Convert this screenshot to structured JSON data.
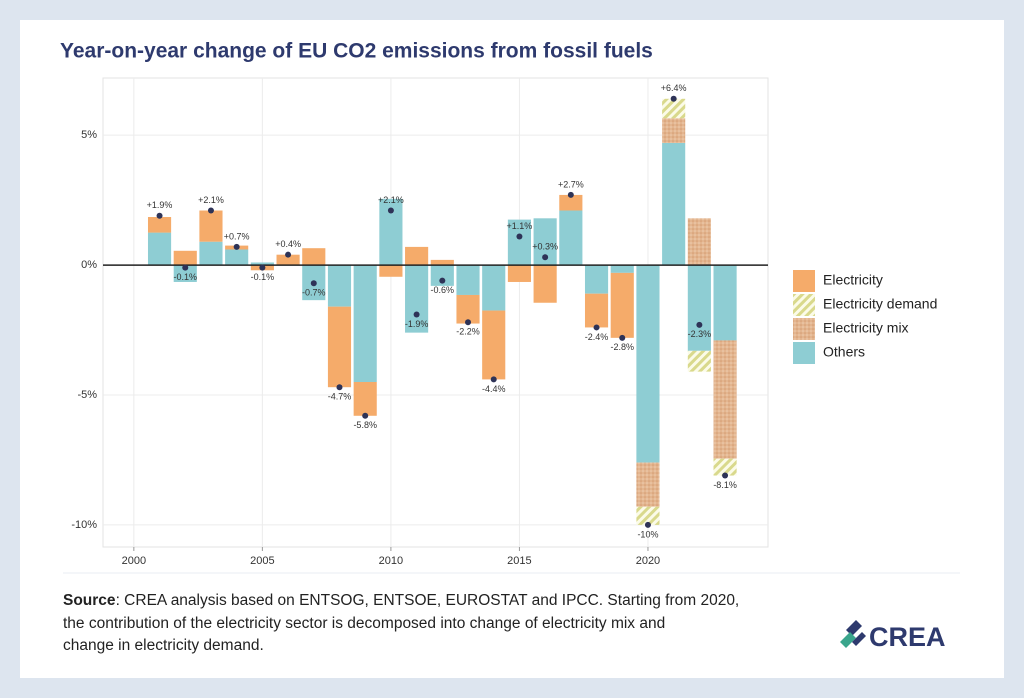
{
  "chart_data": {
    "type": "bar",
    "title": "Year-on-year change of EU CO2 emissions from fossil fuels",
    "x": [
      2001,
      2002,
      2003,
      2004,
      2005,
      2006,
      2007,
      2008,
      2009,
      2010,
      2011,
      2012,
      2013,
      2014,
      2015,
      2016,
      2017,
      2018,
      2019,
      2020,
      2021,
      2022,
      2023
    ],
    "xlim": [
      1998.8,
      2024.67
    ],
    "xticks": [
      2000,
      2005,
      2010,
      2015,
      2020
    ],
    "ylim": [
      -10.85,
      7.2
    ],
    "yticks": [
      {
        "value": 5,
        "label": "5%"
      },
      {
        "value": 0,
        "label": "0%"
      },
      {
        "value": -5,
        "label": "-5%"
      },
      {
        "value": -10,
        "label": "-10%"
      }
    ],
    "grid": true,
    "legend": "right",
    "series": [
      {
        "name": "Electricity",
        "color": "#f5ab6a",
        "values": [
          0.6,
          0.55,
          1.2,
          0.15,
          -0.2,
          0.4,
          0.65,
          -3.1,
          -1.3,
          -0.45,
          0.7,
          0.2,
          -1.1,
          -2.65,
          -0.65,
          -1.45,
          0.6,
          -1.3,
          -2.5,
          null,
          null,
          null,
          null
        ]
      },
      {
        "name": "Electricity demand",
        "color": "#d9d98c",
        "pattern": "stripes",
        "values": [
          null,
          null,
          null,
          null,
          null,
          null,
          null,
          null,
          null,
          null,
          null,
          null,
          null,
          null,
          null,
          null,
          null,
          null,
          null,
          -0.7,
          0.75,
          -0.8,
          -0.65
        ]
      },
      {
        "name": "Electricity mix",
        "color": "#e3b58f",
        "pattern": "dots",
        "values": [
          null,
          null,
          null,
          null,
          null,
          null,
          null,
          null,
          null,
          null,
          null,
          null,
          null,
          null,
          null,
          null,
          null,
          null,
          null,
          -1.7,
          0.95,
          1.8,
          -4.55
        ]
      },
      {
        "name": "Others",
        "color": "#8ecdd3",
        "values": [
          1.25,
          -0.65,
          0.9,
          0.6,
          0.1,
          0,
          -1.35,
          -1.6,
          -4.5,
          2.55,
          -2.6,
          -0.8,
          -1.15,
          -1.75,
          1.75,
          1.8,
          2.1,
          -1.1,
          -0.3,
          -7.6,
          4.7,
          -3.3,
          -2.9
        ]
      }
    ],
    "totals": {
      "color": "#2e3357",
      "values": [
        1.9,
        -0.1,
        2.1,
        0.7,
        -0.1,
        0.4,
        -0.7,
        -4.7,
        -5.8,
        2.1,
        -1.9,
        -0.6,
        -2.2,
        -4.4,
        1.1,
        0.3,
        2.7,
        -2.4,
        -2.8,
        -10,
        6.4,
        -2.3,
        -8.1
      ],
      "value_labels": [
        "+1.9%",
        "-0.1%",
        "+2.1%",
        "+0.7%",
        "-0.1%",
        "+0.4%",
        "-0.7%",
        "-4.7%",
        "-5.8%",
        "+2.1%",
        "-1.9%",
        "-0.6%",
        "-2.2%",
        "-4.4%",
        "+1.1%",
        "+0.3%",
        "+2.7%",
        "-2.4%",
        "-2.8%",
        "-10%",
        "+6.4%",
        "-2.3%",
        "-8.1%"
      ]
    }
  },
  "footer": {
    "source_label": "Source",
    "source_lines": [
      ": CREA analysis based on ENTSOG, ENTSOE, EUROSTAT and IPCC. Starting from 2020,",
      "the contribution of the electricity sector is decomposed into change of electricity mix and",
      "change in electricity demand."
    ],
    "logo": "CREA"
  }
}
